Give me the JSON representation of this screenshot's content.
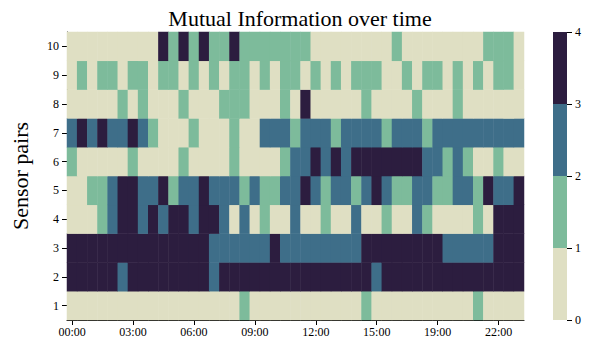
{
  "chart_data": {
    "type": "heatmap",
    "title": "Mutual Information over time",
    "ylabel": "Sensor pairs",
    "categories": [
      "00:00",
      null,
      null,
      null,
      null,
      null,
      "03:00",
      null,
      null,
      null,
      null,
      null,
      "06:00",
      null,
      null,
      null,
      null,
      null,
      "09:00",
      null,
      null,
      null,
      null,
      null,
      "12:00",
      null,
      null,
      null,
      null,
      null,
      "15:00",
      null,
      null,
      null,
      null,
      null,
      "19:00",
      null,
      null,
      null,
      null,
      null,
      "22:00",
      null,
      null
    ],
    "y_categories": [
      "1",
      "2",
      "3",
      "4",
      "5",
      "6",
      "7",
      "8",
      "9",
      "10"
    ],
    "values": [
      [
        0.5,
        0.5,
        0.5,
        0.5,
        0.5,
        0.5,
        0.5,
        0.5,
        0.5,
        0.5,
        0.5,
        0.5,
        0.5,
        0.5,
        0.5,
        0.5,
        0.5,
        1.5,
        0.5,
        0.5,
        0.5,
        0.5,
        0.5,
        0.5,
        0.5,
        0.5,
        0.5,
        0.5,
        0.5,
        1.5,
        0.5,
        0.5,
        0.5,
        0.5,
        0.5,
        0.5,
        0.5,
        0.5,
        0.5,
        0.5,
        1.5,
        0.5,
        0.5,
        0.5,
        0.5
      ],
      [
        3.5,
        3.5,
        3.5,
        3.5,
        3.5,
        2.5,
        3.5,
        3.5,
        3.5,
        3.5,
        3.5,
        3.5,
        3.5,
        3.5,
        2.5,
        3.5,
        3.5,
        3.5,
        3.5,
        3.5,
        3.5,
        3.5,
        3.5,
        3.5,
        3.5,
        3.5,
        3.5,
        3.5,
        3.5,
        3.5,
        2.5,
        3.5,
        3.5,
        3.5,
        3.5,
        3.5,
        3.5,
        3.5,
        3.5,
        3.5,
        3.5,
        3.5,
        3.5,
        3.5,
        3.5
      ],
      [
        3.5,
        3.5,
        3.5,
        3.5,
        3.5,
        3.5,
        3.5,
        3.5,
        3.5,
        3.5,
        3.5,
        3.5,
        3.5,
        3.5,
        2.5,
        2.5,
        2.5,
        2.5,
        2.5,
        2.5,
        3.5,
        2.5,
        2.5,
        2.5,
        2.5,
        2.5,
        2.5,
        2.5,
        2.5,
        3.5,
        3.5,
        3.5,
        3.5,
        3.5,
        3.5,
        3.5,
        3.5,
        2.5,
        2.5,
        2.5,
        2.5,
        2.5,
        3.5,
        3.5,
        3.5
      ],
      [
        0.5,
        0.5,
        0.5,
        1.5,
        2.5,
        3.5,
        3.5,
        2.5,
        3.5,
        2.5,
        3.5,
        3.5,
        2.5,
        3.5,
        3.5,
        2.5,
        0.5,
        2.5,
        0.5,
        1.5,
        0.5,
        0.5,
        2.5,
        0.5,
        0.5,
        1.5,
        0.5,
        0.5,
        2.5,
        0.5,
        0.5,
        1.5,
        0.5,
        0.5,
        2.5,
        1.5,
        0.5,
        0.5,
        0.5,
        0.5,
        1.5,
        0.5,
        3.5,
        3.5,
        3.5
      ],
      [
        0.5,
        0.5,
        1.5,
        1.5,
        2.5,
        3.5,
        3.5,
        2.5,
        2.5,
        3.5,
        1.5,
        2.5,
        2.5,
        3.5,
        2.5,
        2.5,
        2.5,
        1.5,
        2.5,
        1.5,
        1.5,
        2.5,
        2.5,
        3.5,
        2.5,
        1.5,
        2.5,
        2.5,
        1.5,
        2.5,
        3.5,
        2.5,
        1.5,
        1.5,
        2.5,
        2.5,
        1.5,
        1.5,
        2.5,
        2.5,
        1.5,
        3.5,
        2.5,
        2.5,
        3.5
      ],
      [
        1.5,
        0.5,
        0.5,
        0.5,
        0.5,
        0.5,
        1.5,
        0.5,
        0.5,
        0.5,
        0.5,
        1.5,
        0.5,
        0.5,
        0.5,
        0.5,
        1.5,
        0.5,
        0.5,
        0.5,
        0.5,
        1.5,
        2.5,
        2.5,
        3.5,
        2.5,
        3.5,
        2.5,
        3.5,
        3.5,
        3.5,
        3.5,
        3.5,
        3.5,
        3.5,
        2.5,
        2.5,
        1.5,
        2.5,
        1.5,
        0.5,
        0.5,
        1.5,
        0.5,
        0.5
      ],
      [
        2.5,
        3.5,
        2.5,
        3.5,
        2.5,
        2.5,
        3.5,
        2.5,
        1.5,
        0.5,
        0.5,
        0.5,
        1.5,
        0.5,
        0.5,
        0.5,
        1.5,
        0.5,
        0.5,
        2.5,
        2.5,
        2.5,
        1.5,
        2.5,
        2.5,
        2.5,
        1.5,
        2.5,
        2.5,
        2.5,
        2.5,
        1.5,
        2.5,
        2.5,
        2.5,
        1.5,
        2.5,
        2.5,
        2.5,
        2.5,
        2.5,
        2.5,
        2.5,
        2.5,
        2.5
      ],
      [
        0.5,
        0.5,
        0.5,
        0.5,
        0.5,
        1.5,
        0.5,
        1.5,
        0.5,
        0.5,
        0.5,
        1.5,
        0.5,
        0.5,
        0.5,
        1.5,
        1.5,
        1.5,
        0.5,
        0.5,
        0.5,
        1.5,
        0.5,
        3.5,
        0.5,
        0.5,
        0.5,
        0.5,
        0.5,
        1.5,
        0.5,
        0.5,
        0.5,
        0.5,
        1.5,
        0.5,
        0.5,
        0.5,
        1.5,
        0.5,
        0.5,
        0.5,
        0.5,
        0.5,
        0.5
      ],
      [
        0.5,
        1.5,
        0.5,
        1.5,
        1.5,
        0.5,
        1.5,
        1.5,
        0.5,
        1.5,
        1.5,
        0.5,
        1.5,
        0.5,
        1.5,
        0.5,
        1.5,
        1.5,
        0.5,
        1.5,
        0.5,
        1.5,
        1.5,
        0.5,
        1.5,
        0.5,
        1.5,
        0.5,
        1.5,
        1.5,
        1.5,
        0.5,
        0.5,
        1.5,
        0.5,
        1.5,
        1.5,
        0.5,
        1.5,
        0.5,
        1.5,
        0.5,
        1.5,
        1.5,
        0.5
      ],
      [
        0.5,
        0.5,
        0.5,
        0.5,
        0.5,
        0.5,
        0.5,
        0.5,
        0.5,
        3.5,
        1.5,
        3.5,
        1.5,
        3.5,
        1.5,
        1.5,
        3.5,
        1.5,
        1.5,
        1.5,
        1.5,
        1.5,
        1.5,
        1.5,
        0.5,
        0.5,
        0.5,
        0.5,
        0.5,
        0.5,
        0.5,
        0.5,
        1.5,
        0.5,
        0.5,
        0.5,
        0.5,
        0.5,
        0.5,
        0.5,
        0.5,
        1.5,
        1.5,
        1.5,
        0.5
      ]
    ],
    "colorbar_range": [
      0,
      4
    ],
    "colorbar_ticks": [
      0,
      1,
      2,
      3,
      4
    ],
    "colors": [
      "#dfdfc3",
      "#7dbb9b",
      "#3e6e89",
      "#2c1d3f"
    ]
  }
}
